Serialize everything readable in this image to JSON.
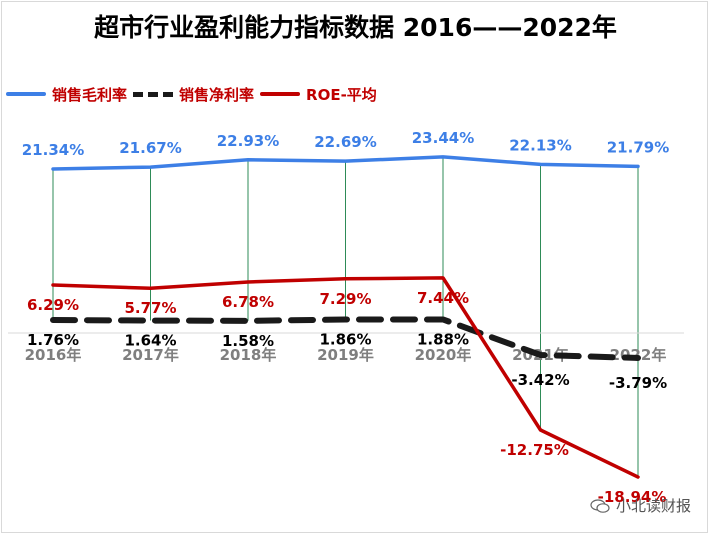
{
  "title": "超市行业盈利能力指标数据 2016——2022年",
  "watermark": "小北读财报",
  "colors": {
    "gross_margin": "#3d7fe6",
    "net_margin": "#1a1a1a",
    "roe": "#c00000",
    "gridline": "#2e8b57",
    "axis_label": "#7f7f7f"
  },
  "chart_data": {
    "type": "line",
    "title": "超市行业盈利能力指标数据 2016——2022年",
    "categories": [
      "2016年",
      "2017年",
      "2018年",
      "2019年",
      "2020年",
      "2021年",
      "2022年"
    ],
    "series": [
      {
        "name": "销售毛利率",
        "style": "solid",
        "values": [
          21.34,
          21.67,
          22.93,
          22.69,
          23.44,
          22.13,
          21.79
        ],
        "labels": [
          "21.34%",
          "21.67%",
          "22.93%",
          "22.69%",
          "23.44%",
          "22.13%",
          "21.79%"
        ]
      },
      {
        "name": "销售净利率",
        "style": "dashed",
        "values": [
          1.76,
          1.64,
          1.58,
          1.86,
          1.88,
          -3.42,
          -3.79
        ],
        "labels": [
          "1.76%",
          "1.64%",
          "1.58%",
          "1.86%",
          "1.88%",
          "-3.42%",
          "-3.79%"
        ]
      },
      {
        "name": "ROE-平均",
        "style": "solid",
        "values": [
          6.29,
          5.77,
          6.78,
          7.29,
          7.44,
          -12.75,
          -18.94
        ],
        "labels": [
          "6.29%",
          "5.77%",
          "6.78%",
          "7.29%",
          "7.44%",
          "-12.75%",
          "-18.94%"
        ]
      }
    ],
    "ylim": [
      -20,
      25
    ],
    "legend": "top-left",
    "grid": "vertical drop lines"
  }
}
